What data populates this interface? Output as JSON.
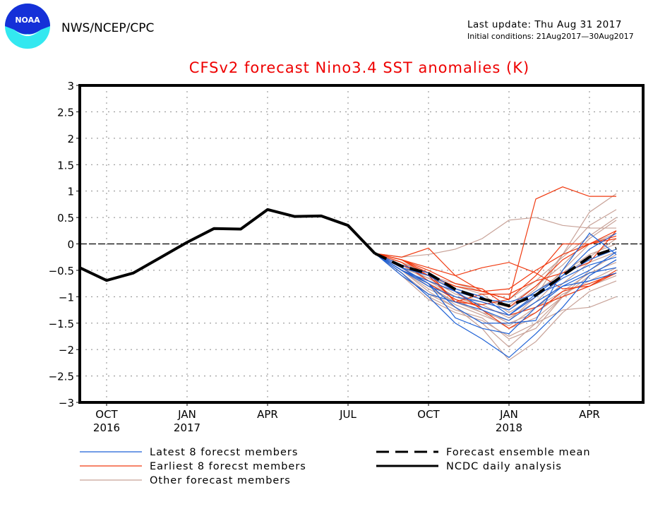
{
  "header": {
    "org": "NWS/NCEP/CPC",
    "logo": "noaa-logo",
    "logo_text": "NOAA",
    "last_update": "Last update: Thu Aug 31 2017",
    "initial_conditions": "Initial conditions: 21Aug2017—30Aug2017"
  },
  "chart_data": {
    "type": "line",
    "title": "CFSv2 forecast Nino3.4 SST anomalies (K)",
    "xlabel": "",
    "ylabel": "",
    "ylim": [
      -3,
      3
    ],
    "yticks": [
      3,
      2.5,
      2,
      1.5,
      1,
      0.5,
      0,
      -0.5,
      -1,
      -1.5,
      -2,
      -2.5,
      -3
    ],
    "ytick_labels": [
      "3",
      "2.5",
      "2",
      "1.5",
      "1",
      "0.5",
      "0",
      "−0.5",
      "−1",
      "−1.5",
      "−2",
      "−2.5",
      "−3"
    ],
    "x_months": [
      "Sep2016",
      "Oct2016",
      "Nov2016",
      "Dec2016",
      "Jan2017",
      "Feb2017",
      "Mar2017",
      "Apr2017",
      "May2017",
      "Jun2017",
      "Jul2017",
      "Aug2017",
      "Sep2017",
      "Oct2017",
      "Nov2017",
      "Dec2017",
      "Jan2018",
      "Feb2018",
      "Mar2018",
      "Apr2018",
      "May2018",
      "Jun2018"
    ],
    "xticks": [
      {
        "index": 1,
        "label": "OCT",
        "year": "2016"
      },
      {
        "index": 4,
        "label": "JAN",
        "year": "2017"
      },
      {
        "index": 7,
        "label": "APR",
        "year": ""
      },
      {
        "index": 10,
        "label": "JUL",
        "year": ""
      },
      {
        "index": 13,
        "label": "OCT",
        "year": ""
      },
      {
        "index": 16,
        "label": "JAN",
        "year": "2018"
      },
      {
        "index": 19,
        "label": "APR",
        "year": ""
      }
    ],
    "grid": true,
    "zero_line": true,
    "colors": {
      "latest": "#1f62d6",
      "earliest": "#f03a10",
      "other": "#c8a298",
      "mean": "#000000",
      "analysis": "#000000"
    },
    "series": [
      {
        "name": "NCDC daily analysis",
        "style": "solid-thick",
        "start_index": 0,
        "values": [
          -0.45,
          -0.69,
          -0.55,
          -0.26,
          0.03,
          0.29,
          0.28,
          0.65,
          0.52,
          0.53,
          0.35,
          -0.18
        ]
      },
      {
        "name": "Forecast ensemble mean",
        "style": "dashed-thick",
        "start_index": 11,
        "values": [
          -0.18,
          -0.42,
          -0.56,
          -0.86,
          -1.04,
          -1.17,
          -0.97,
          -0.6,
          -0.25,
          -0.08
        ]
      }
    ],
    "members": {
      "start_index": 11,
      "latest": [
        [
          -0.18,
          -0.5,
          -0.8,
          -1.0,
          -1.1,
          -1.25,
          -0.9,
          -0.6,
          -0.1,
          0.2
        ],
        [
          -0.18,
          -0.45,
          -0.75,
          -1.2,
          -1.5,
          -1.5,
          -1.45,
          -0.5,
          0.2,
          -0.2
        ],
        [
          -0.18,
          -0.55,
          -1.0,
          -1.5,
          -1.8,
          -2.15,
          -1.7,
          -1.2,
          -0.6,
          -0.3
        ],
        [
          -0.18,
          -0.5,
          -0.7,
          -0.9,
          -1.2,
          -1.35,
          -0.95,
          -0.6,
          -0.3,
          -0.1
        ],
        [
          -0.18,
          -0.45,
          -0.6,
          -0.9,
          -1.05,
          -1.1,
          -0.95,
          -0.75,
          -0.5,
          -0.15
        ],
        [
          -0.18,
          -0.6,
          -0.95,
          -1.1,
          -1.25,
          -1.45,
          -1.1,
          -0.8,
          -0.55,
          -0.45
        ],
        [
          -0.18,
          -0.5,
          -0.75,
          -1.4,
          -1.6,
          -1.7,
          -1.2,
          -0.8,
          -0.7,
          -0.55
        ],
        [
          -0.18,
          -0.4,
          -0.55,
          -0.85,
          -1.0,
          -1.35,
          -1.0,
          -0.65,
          -0.4,
          -0.25
        ]
      ],
      "earliest": [
        [
          -0.18,
          -0.25,
          -0.08,
          -0.6,
          -0.9,
          -1.05,
          0.85,
          1.08,
          0.9,
          0.9
        ],
        [
          -0.18,
          -0.3,
          -0.55,
          -1.1,
          -0.95,
          -0.95,
          -0.7,
          -0.55,
          -0.35,
          0.25
        ],
        [
          -0.18,
          -0.35,
          -0.7,
          -0.9,
          -1.25,
          -1.6,
          -1.3,
          -0.9,
          -0.75,
          -0.55
        ],
        [
          -0.18,
          -0.3,
          -0.45,
          -0.6,
          -0.45,
          -0.35,
          -0.55,
          -0.85,
          -0.8,
          -0.55
        ],
        [
          -0.18,
          -0.4,
          -0.6,
          -1.1,
          -1.15,
          -1.05,
          -0.6,
          0.0,
          0.0,
          0.1
        ],
        [
          -0.18,
          -0.3,
          -0.5,
          -0.75,
          -0.85,
          -1.2,
          -0.8,
          -0.3,
          0.0,
          0.25
        ],
        [
          -0.18,
          -0.45,
          -0.75,
          -1.05,
          -1.2,
          -1.35,
          -1.2,
          -1.0,
          -0.8,
          -0.5
        ],
        [
          -0.18,
          -0.3,
          -0.6,
          -0.8,
          -0.9,
          -0.85,
          -0.5,
          -0.2,
          0.0,
          0.15
        ]
      ],
      "other": [
        [
          -0.18,
          -0.25,
          -0.2,
          -0.1,
          0.1,
          0.45,
          0.5,
          0.35,
          0.3,
          0.3
        ],
        [
          -0.18,
          -0.4,
          -0.6,
          -0.8,
          -0.95,
          -1.3,
          -1.0,
          -0.2,
          0.6,
          0.95
        ],
        [
          -0.18,
          -0.5,
          -0.8,
          -1.1,
          -1.3,
          -1.6,
          -1.4,
          -1.0,
          -0.6,
          -0.3
        ],
        [
          -0.18,
          -0.6,
          -1.05,
          -1.3,
          -1.45,
          -1.75,
          -1.5,
          -1.25,
          -1.2,
          -1.0
        ],
        [
          -0.18,
          -0.55,
          -0.95,
          -1.2,
          -1.6,
          -2.2,
          -1.85,
          -1.3,
          -0.9,
          -0.7
        ],
        [
          -0.18,
          -0.35,
          -0.55,
          -0.9,
          -1.05,
          -1.15,
          -0.8,
          -0.4,
          0.1,
          0.45
        ],
        [
          -0.18,
          -0.5,
          -0.75,
          -1.05,
          -1.3,
          -1.45,
          -1.0,
          -0.5,
          0.0,
          0.2
        ],
        [
          -0.18,
          -0.45,
          -0.65,
          -0.95,
          -1.1,
          -1.25,
          -0.85,
          -0.2,
          0.35,
          0.65
        ],
        [
          -0.18,
          -0.5,
          -0.9,
          -1.2,
          -1.5,
          -1.95,
          -1.5,
          -1.0,
          -0.8,
          -0.6
        ],
        [
          -0.18,
          -0.4,
          -0.7,
          -1.0,
          -1.2,
          -1.35,
          -1.2,
          -0.9,
          -0.55,
          -0.35
        ],
        [
          -0.18,
          -0.45,
          -0.8,
          -1.15,
          -1.35,
          -1.55,
          -1.2,
          -0.75,
          -0.35,
          -0.15
        ],
        [
          -0.18,
          -0.35,
          -0.6,
          -0.75,
          -0.9,
          -1.05,
          -0.7,
          -0.25,
          0.15,
          0.5
        ],
        [
          -0.18,
          -0.55,
          -1.0,
          -1.25,
          -1.4,
          -1.8,
          -1.6,
          -1.0,
          -0.5,
          -0.2
        ],
        [
          -0.18,
          -0.4,
          -0.65,
          -0.85,
          -1.05,
          -1.2,
          -0.9,
          -0.55,
          -0.2,
          0.0
        ],
        [
          -0.18,
          -0.45,
          -0.75,
          -1.0,
          -1.15,
          -1.4,
          -1.1,
          -0.6,
          -0.25,
          0.1
        ],
        [
          -0.18,
          -0.5,
          -0.85,
          -1.1,
          -1.25,
          -1.5,
          -1.3,
          -0.95,
          -0.7,
          -0.45
        ]
      ]
    },
    "legend": {
      "placement": "bottom",
      "entries": [
        {
          "label": "Latest 8 forecst members",
          "style": "latest"
        },
        {
          "label": "Earliest 8 forecst members",
          "style": "earliest"
        },
        {
          "label": "Other forecast members",
          "style": "other"
        },
        {
          "label": "Forecast ensemble mean",
          "style": "mean"
        },
        {
          "label": "NCDC daily analysis",
          "style": "analysis"
        }
      ]
    }
  }
}
